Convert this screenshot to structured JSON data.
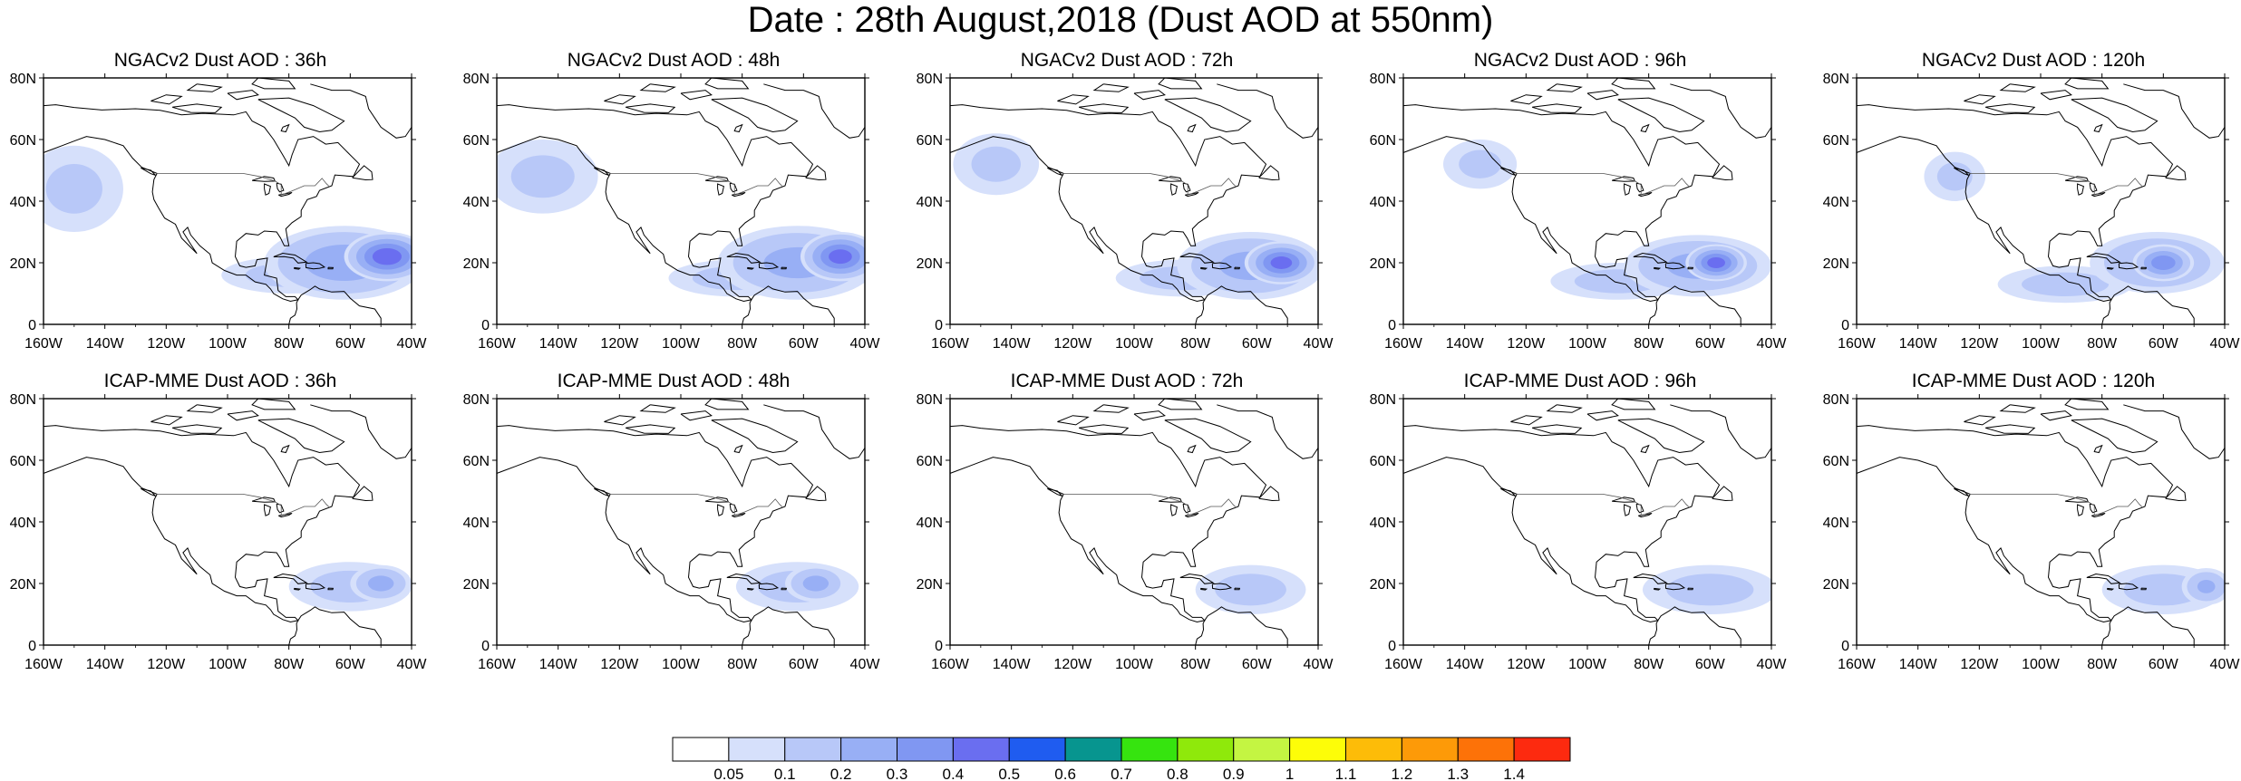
{
  "title": "Date : 28th August,2018 (Dust AOD at 550nm)",
  "chart_data": {
    "type": "heatmap",
    "map_extent": {
      "lon": [
        -160,
        -40
      ],
      "lat": [
        0,
        80
      ]
    },
    "lon_ticks": [
      "160W",
      "140W",
      "120W",
      "100W",
      "80W",
      "60W",
      "40W"
    ],
    "lat_ticks": [
      "0",
      "20N",
      "40N",
      "60N",
      "80N"
    ],
    "colorbar": {
      "labels": [
        "0.05",
        "0.1",
        "0.2",
        "0.3",
        "0.4",
        "0.5",
        "0.6",
        "0.7",
        "0.8",
        "0.9",
        "1",
        "1.1",
        "1.2",
        "1.3",
        "1.4"
      ],
      "colors": [
        "#ffffff",
        "#d6e0fb",
        "#b8c8f8",
        "#98aff5",
        "#8097f2",
        "#6a6ef0",
        "#1f5cf0",
        "#07958f",
        "#36e40f",
        "#8fe90b",
        "#c4f542",
        "#fdfd08",
        "#fdbc08",
        "#fd9a08",
        "#fd7208",
        "#fd2a0f"
      ]
    },
    "panels": [
      {
        "title": "NGACv2 Dust AOD : 36h",
        "plumes": [
          {
            "lon": -48,
            "lat": 22,
            "rx": 14,
            "ry": 8,
            "aod": 0.45
          },
          {
            "lon": -62,
            "lat": 20,
            "rx": 26,
            "ry": 12,
            "aod": 0.25
          },
          {
            "lon": -80,
            "lat": 16,
            "rx": 22,
            "ry": 6,
            "aod": 0.12
          },
          {
            "lon": -150,
            "lat": 44,
            "rx": 16,
            "ry": 14,
            "aod": 0.1
          }
        ]
      },
      {
        "title": "NGACv2 Dust AOD : 48h",
        "plumes": [
          {
            "lon": -48,
            "lat": 22,
            "rx": 13,
            "ry": 8,
            "aod": 0.42
          },
          {
            "lon": -62,
            "lat": 20,
            "rx": 26,
            "ry": 12,
            "aod": 0.22
          },
          {
            "lon": -82,
            "lat": 15,
            "rx": 22,
            "ry": 6,
            "aod": 0.12
          },
          {
            "lon": -145,
            "lat": 48,
            "rx": 18,
            "ry": 12,
            "aod": 0.1
          }
        ]
      },
      {
        "title": "NGACv2 Dust AOD : 72h",
        "plumes": [
          {
            "lon": -52,
            "lat": 20,
            "rx": 12,
            "ry": 7,
            "aod": 0.42
          },
          {
            "lon": -62,
            "lat": 19,
            "rx": 24,
            "ry": 11,
            "aod": 0.22
          },
          {
            "lon": -84,
            "lat": 15,
            "rx": 22,
            "ry": 6,
            "aod": 0.12
          },
          {
            "lon": -145,
            "lat": 52,
            "rx": 14,
            "ry": 10,
            "aod": 0.1
          }
        ]
      },
      {
        "title": "NGACv2 Dust AOD : 96h",
        "plumes": [
          {
            "lon": -58,
            "lat": 20,
            "rx": 10,
            "ry": 6,
            "aod": 0.42
          },
          {
            "lon": -64,
            "lat": 19,
            "rx": 24,
            "ry": 10,
            "aod": 0.22
          },
          {
            "lon": -90,
            "lat": 14,
            "rx": 22,
            "ry": 6,
            "aod": 0.12
          },
          {
            "lon": -135,
            "lat": 52,
            "rx": 12,
            "ry": 8,
            "aod": 0.1
          }
        ]
      },
      {
        "title": "NGACv2 Dust AOD : 120h",
        "plumes": [
          {
            "lon": -60,
            "lat": 20,
            "rx": 10,
            "ry": 6,
            "aod": 0.35
          },
          {
            "lon": -62,
            "lat": 20,
            "rx": 22,
            "ry": 10,
            "aod": 0.2
          },
          {
            "lon": -92,
            "lat": 13,
            "rx": 22,
            "ry": 6,
            "aod": 0.12
          },
          {
            "lon": -128,
            "lat": 48,
            "rx": 10,
            "ry": 8,
            "aod": 0.1
          }
        ]
      },
      {
        "title": "ICAP-MME Dust AOD : 36h",
        "plumes": [
          {
            "lon": -50,
            "lat": 20,
            "rx": 10,
            "ry": 6,
            "aod": 0.22
          },
          {
            "lon": -60,
            "lat": 19,
            "rx": 20,
            "ry": 8,
            "aod": 0.12
          }
        ]
      },
      {
        "title": "ICAP-MME Dust AOD : 48h",
        "plumes": [
          {
            "lon": -56,
            "lat": 20,
            "rx": 10,
            "ry": 6,
            "aod": 0.22
          },
          {
            "lon": -62,
            "lat": 19,
            "rx": 20,
            "ry": 8,
            "aod": 0.12
          }
        ]
      },
      {
        "title": "ICAP-MME Dust AOD : 72h",
        "plumes": [
          {
            "lon": -62,
            "lat": 18,
            "rx": 18,
            "ry": 8,
            "aod": 0.12
          }
        ]
      },
      {
        "title": "ICAP-MME Dust AOD : 96h",
        "plumes": [
          {
            "lon": -60,
            "lat": 18,
            "rx": 22,
            "ry": 8,
            "aod": 0.12
          }
        ]
      },
      {
        "title": "ICAP-MME Dust AOD : 120h",
        "plumes": [
          {
            "lon": -46,
            "lat": 19,
            "rx": 8,
            "ry": 6,
            "aod": 0.2
          },
          {
            "lon": -60,
            "lat": 18,
            "rx": 20,
            "ry": 8,
            "aod": 0.12
          }
        ]
      }
    ]
  }
}
